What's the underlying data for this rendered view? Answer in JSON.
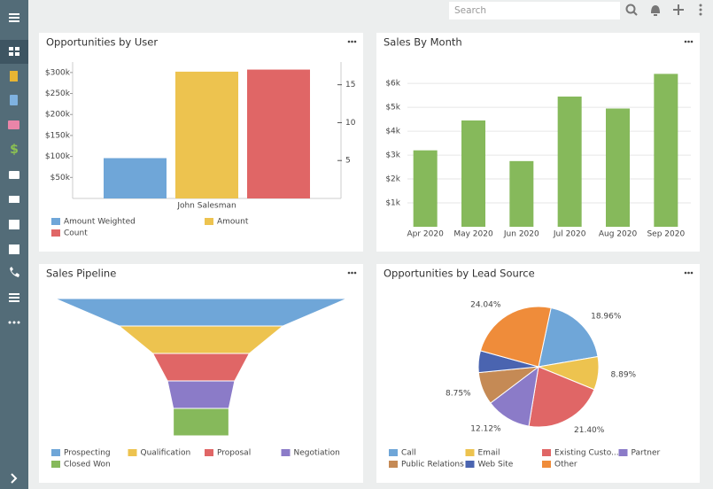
{
  "search_placeholder": "Search",
  "chart_data": [
    {
      "type": "bar",
      "title": "Opportunities by User",
      "categories": [
        "John Salesman"
      ],
      "series": [
        {
          "name": "Amount Weighted",
          "color": "#6fa6d8",
          "values": [
            96000
          ]
        },
        {
          "name": "Amount",
          "color": "#edc34f",
          "values": [
            302000
          ]
        },
        {
          "name": "Count",
          "color": "#e06666",
          "values": [
            17
          ],
          "axis": "y2"
        }
      ],
      "ylim": [
        0,
        325000
      ],
      "yticks": [
        {
          "value": 50000,
          "label": "$50k"
        },
        {
          "value": 100000,
          "label": "$100k"
        },
        {
          "value": 150000,
          "label": "$150k"
        },
        {
          "value": 200000,
          "label": "$200k"
        },
        {
          "value": 250000,
          "label": "$250k"
        },
        {
          "value": 300000,
          "label": "$300k"
        }
      ],
      "y2lim": [
        0,
        18
      ],
      "y2ticks": [
        5,
        10,
        15
      ],
      "grid": false
    },
    {
      "type": "bar",
      "title": "Sales By Month",
      "categories": [
        "Apr 2020",
        "May 2020",
        "Jun 2020",
        "Jul 2020",
        "Aug 2020",
        "Sep 2020"
      ],
      "values": [
        3200,
        4450,
        2750,
        5450,
        4950,
        6400
      ],
      "color": "#86b95b",
      "ylim": [
        0,
        6600
      ],
      "yticks": [
        {
          "value": 1000,
          "label": "$1k"
        },
        {
          "value": 2000,
          "label": "$2k"
        },
        {
          "value": 3000,
          "label": "$3k"
        },
        {
          "value": 4000,
          "label": "$4k"
        },
        {
          "value": 5000,
          "label": "$5k"
        },
        {
          "value": 6000,
          "label": "$6k"
        }
      ],
      "grid": true
    },
    {
      "type": "funnel",
      "title": "Sales Pipeline",
      "categories": [
        "Prospecting",
        "Qualification",
        "Proposal",
        "Negotiation",
        "Closed Won"
      ],
      "values": [
        100,
        56,
        33,
        23,
        19
      ],
      "colors": [
        "#6fa6d8",
        "#edc34f",
        "#e06666",
        "#8b7bc8",
        "#86b95b"
      ]
    },
    {
      "type": "pie",
      "title": "Opportunities by Lead Source",
      "categories": [
        "Call",
        "Email",
        "Existing Custo...",
        "Partner",
        "Public Relations",
        "Web Site",
        "Other"
      ],
      "values": [
        18.96,
        8.89,
        21.4,
        12.12,
        8.75,
        5.84,
        24.04
      ],
      "value_labels": [
        "18.96%",
        "8.89%",
        "21.40%",
        "12.12%",
        "8.75%",
        null,
        "24.04%"
      ],
      "colors": [
        "#6fa6d8",
        "#edc34f",
        "#e06666",
        "#8b7bc8",
        "#c58a55",
        "#4a64b0",
        "#ef8c3a"
      ]
    }
  ]
}
